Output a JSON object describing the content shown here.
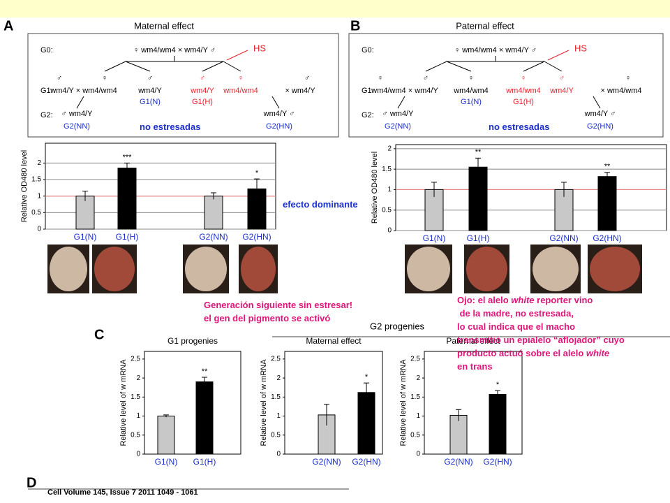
{
  "panels": {
    "A": "A",
    "B": "B",
    "C": "C",
    "D": "D"
  },
  "pedigree_A": {
    "title": "Maternal effect",
    "items": [
      "G0:",
      "♀ wm4/wm4 × wm4/Y ♂",
      "HS",
      "G1:",
      "♂",
      "♀",
      "♂",
      "♂",
      "♀",
      "♂",
      "wm4/Y × wm4/wm4",
      "wm4/Y",
      "wm4/Y",
      "wm4/wm4",
      "× wm4/Y",
      "G1(N)",
      "G1(H)",
      "G2:",
      "♂ wm4/Y",
      "wm4/Y ♂",
      "G2(NN)",
      "G2(HN)"
    ]
  },
  "pedigree_B": {
    "title": "Paternal effect",
    "items": [
      "G0:",
      "♀ wm4/wm4 × wm4/Y ♂",
      "HS",
      "G1:",
      "♀",
      "♂",
      "♀",
      "♀",
      "♂",
      "♀",
      "wm4/wm4 × wm4/Y",
      "wm4/wm4",
      "wm4/wm4",
      "wm4/Y",
      "× wm4/wm4",
      "G1(N)",
      "G1(H)",
      "G2:",
      "♂ wm4/Y",
      "wm4/Y ♂",
      "G2(NN)",
      "G2(HN)"
    ]
  },
  "chart_data": [
    {
      "type": "bar",
      "ylabel": "Relative OD480 level",
      "categories": [
        "G1(N)",
        "G1(H)",
        "G2(NN)",
        "G2(HN)"
      ],
      "values": [
        1.0,
        1.85,
        1.0,
        1.22
      ],
      "errors": [
        0.15,
        0.15,
        0.1,
        0.3
      ],
      "annotations": [
        null,
        "***",
        null,
        "*"
      ],
      "colors": [
        "#c8c8c8",
        "#000000",
        "#c8c8c8",
        "#000000"
      ],
      "ylim": [
        0,
        2.6
      ],
      "yticks": [
        0,
        0.5,
        1,
        1.5,
        2
      ],
      "grid": true,
      "reference_line": 1
    },
    {
      "type": "bar",
      "ylabel": "Relative OD480 level",
      "categories": [
        "G1(N)",
        "G1(H)",
        "G2(NN)",
        "G2(HN)"
      ],
      "values": [
        1.0,
        1.55,
        1.0,
        1.32
      ],
      "errors": [
        0.18,
        0.22,
        0.18,
        0.1
      ],
      "annotations": [
        null,
        "**",
        null,
        "**"
      ],
      "colors": [
        "#c8c8c8",
        "#000000",
        "#c8c8c8",
        "#000000"
      ],
      "ylim": [
        0,
        2.1
      ],
      "yticks": [
        0,
        0.5,
        1,
        1.5,
        2
      ],
      "grid": true,
      "reference_line": 1
    },
    {
      "type": "bar",
      "title": "G1 progenies",
      "ylabel": "Relative level of w mRNA",
      "categories": [
        "G1(N)",
        "G1(H)"
      ],
      "values": [
        1.0,
        1.9
      ],
      "errors": [
        0.03,
        0.12
      ],
      "annotations": [
        null,
        "**"
      ],
      "colors": [
        "#c8c8c8",
        "#000000"
      ],
      "ylim": [
        0,
        2.7
      ],
      "yticks": [
        0,
        0.5,
        1,
        1.5,
        2,
        2.5
      ],
      "grid": false
    },
    {
      "type": "bar",
      "title": "Maternal effect",
      "ylabel": "Relative level of w mRNA",
      "categories": [
        "G2(NN)",
        "G2(HN)"
      ],
      "values": [
        1.03,
        1.62
      ],
      "errors": [
        0.28,
        0.25
      ],
      "annotations": [
        null,
        "*"
      ],
      "colors": [
        "#c8c8c8",
        "#000000"
      ],
      "ylim": [
        0,
        2.7
      ],
      "yticks": [
        0,
        0.5,
        1,
        1.5,
        2,
        2.5
      ],
      "grid": false
    },
    {
      "type": "bar",
      "title": "Paternal effect",
      "ylabel": "Relative level of w mRNA",
      "categories": [
        "G2(NN)",
        "G2(HN)"
      ],
      "values": [
        1.02,
        1.57
      ],
      "errors": [
        0.15,
        0.1
      ],
      "annotations": [
        null,
        "*"
      ],
      "colors": [
        "#c8c8c8",
        "#000000"
      ],
      "ylim": [
        0,
        2.7
      ],
      "yticks": [
        0,
        0.5,
        1,
        1.5,
        2,
        2.5
      ],
      "grid": false
    }
  ],
  "g2_progenies": "G2 progenies",
  "notes": {
    "no_stress_A": "no estresadas",
    "no_stress_B": "no estresadas",
    "dominant": "efecto dominante",
    "next_gen": [
      "Generación siguiente sin estresar!",
      "el gen del pigmento se activó"
    ]
  },
  "ojo": [
    [
      "Ojo: el alelo ",
      "white",
      " reporter vino"
    ],
    [
      " de la madre, no estresada,"
    ],
    [
      "lo cual indica que el macho"
    ],
    [
      "transmitió un epialelo “aflojador” cuyo"
    ],
    [
      "producto actuó sobre el alelo ",
      "white"
    ],
    [
      "en trans"
    ]
  ],
  "citation": "Cell Volume 145, Issue 7 2011 1049 - 1061"
}
